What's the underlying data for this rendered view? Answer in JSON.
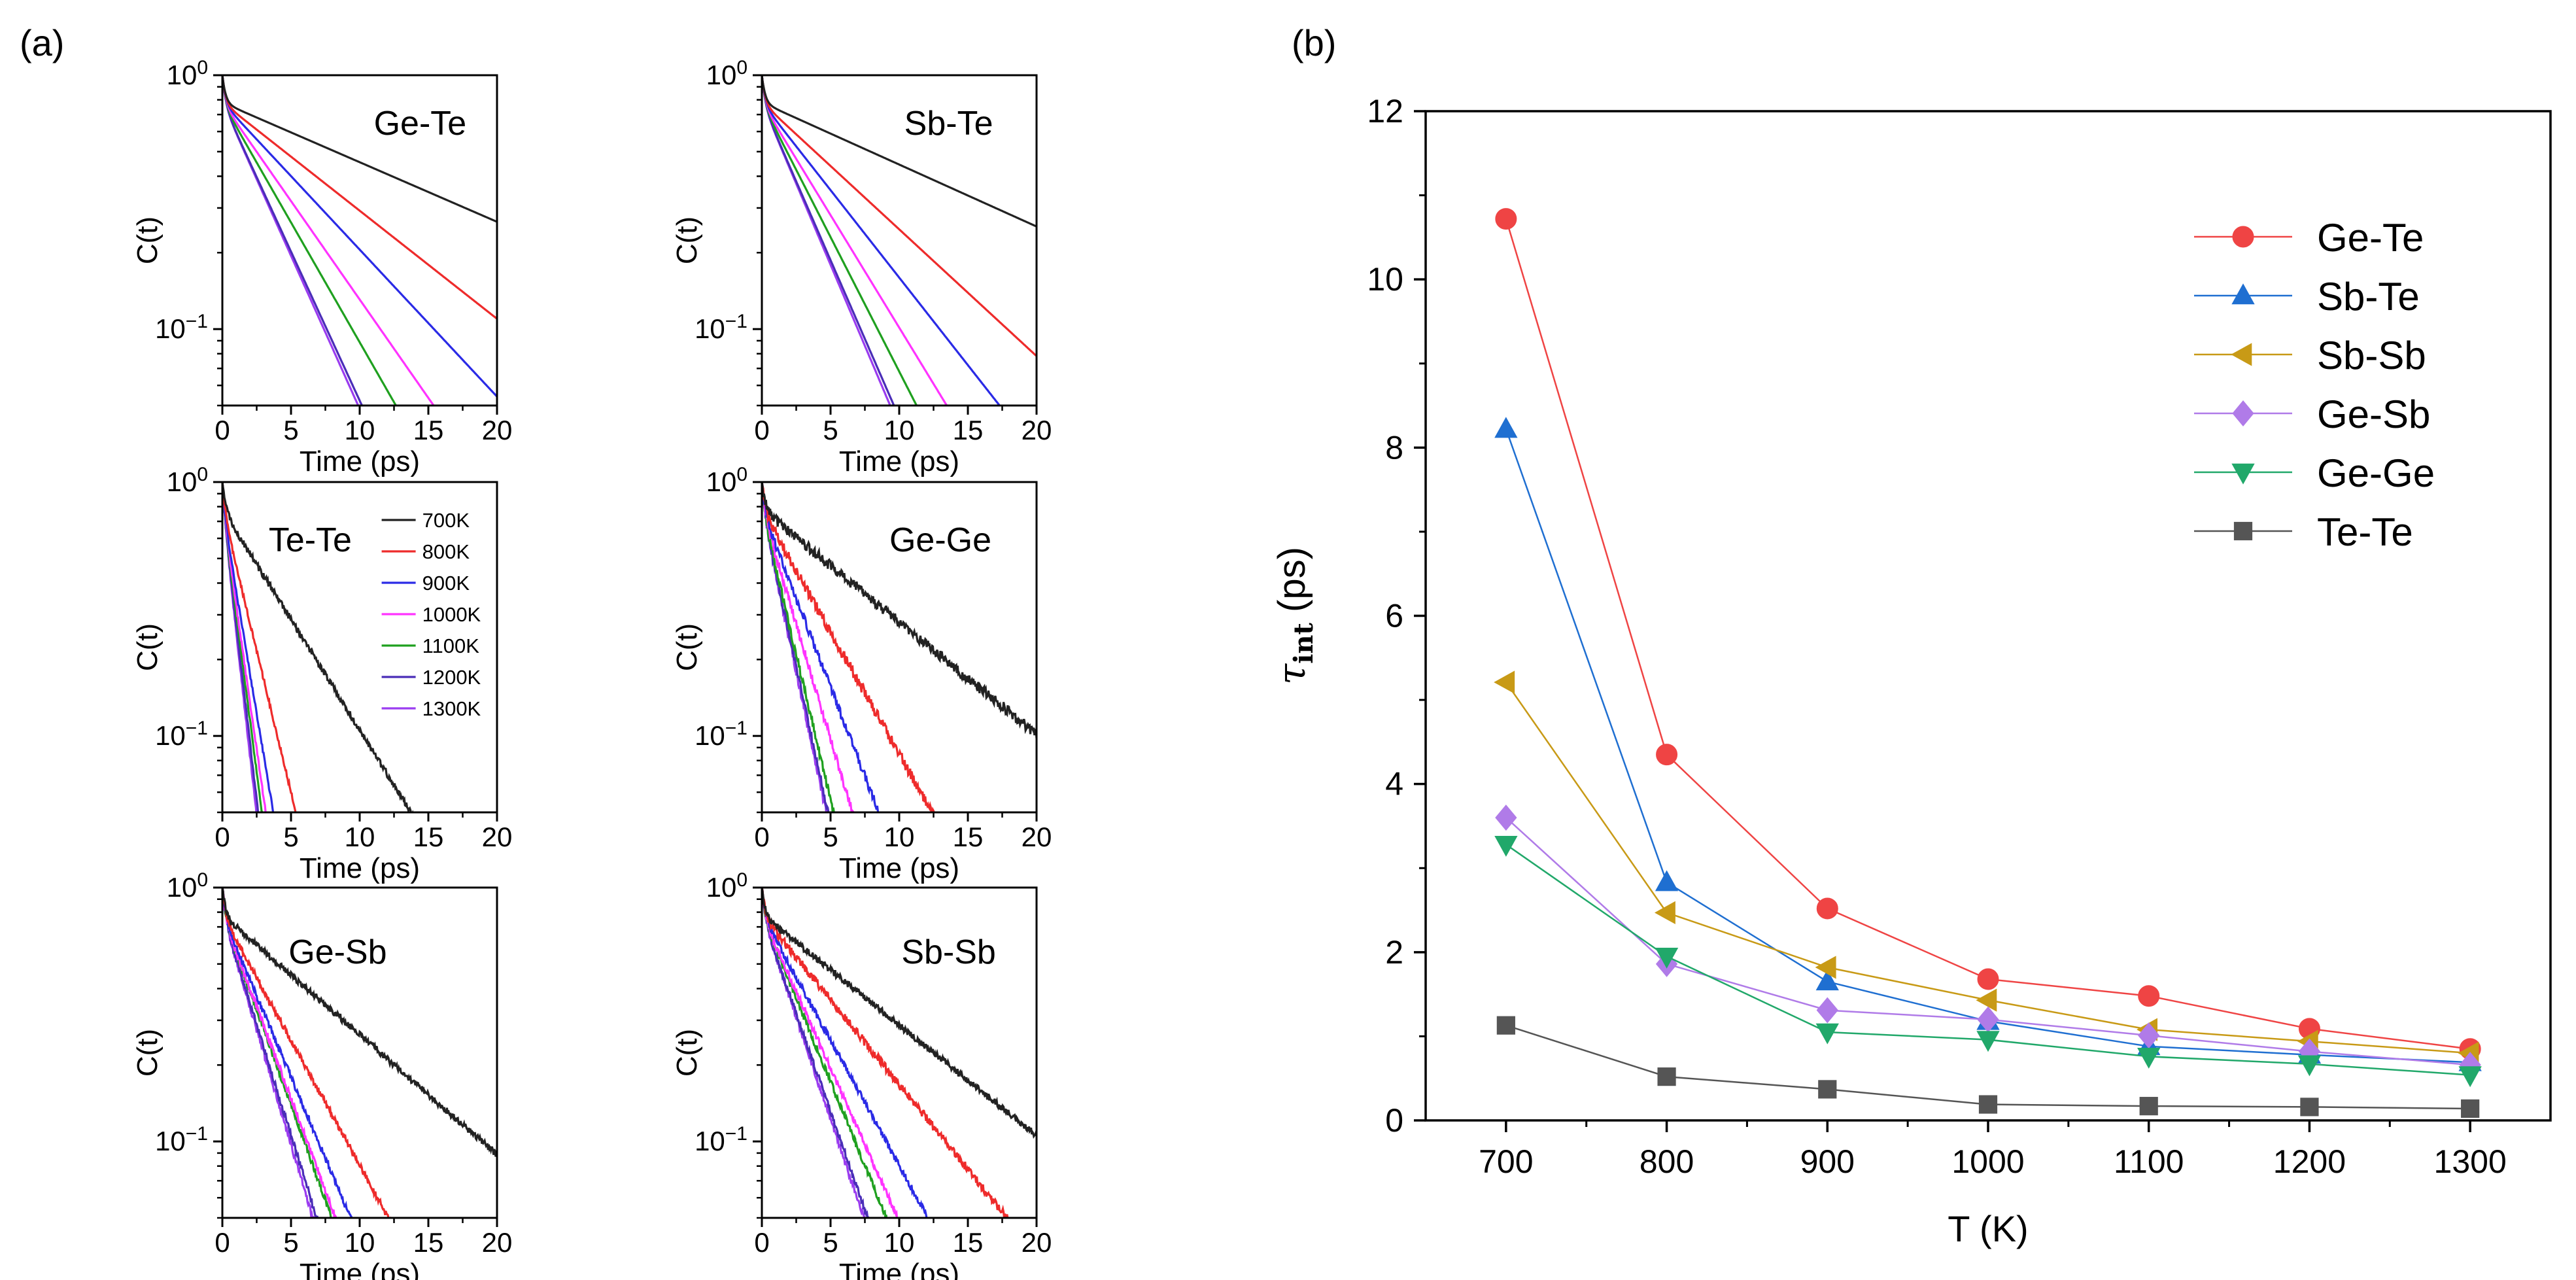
{
  "figure": {
    "panel_a_label": "(a)",
    "panel_b_label": "(b)"
  },
  "colors": {
    "700K": "#222222",
    "800K": "#ee2b2b",
    "900K": "#2a2ae6",
    "1000K": "#ff33ff",
    "1100K": "#1fa01f",
    "1200K": "#4a2db8",
    "1300K": "#9b3cf0",
    "Ge-Te": "#ef4444",
    "Sb-Te": "#1f6fd1",
    "Sb-Sb": "#c89a16",
    "Ge-Sb": "#b07be8",
    "Ge-Ge": "#21a86a",
    "Te-Te": "#555555"
  },
  "chart_data": [
    {
      "type": "line",
      "panel": "(a)",
      "title": "Ge-Te",
      "xlabel": "Time (ps)",
      "ylabel": "C(t)",
      "xlim": [
        0,
        20
      ],
      "ylim": [
        0.05,
        1
      ],
      "yscale": "log",
      "xticks": [
        "0",
        "5",
        "10",
        "15",
        "20"
      ],
      "grid": false,
      "taus": [
        18.5,
        10.2,
        7.5,
        5.6,
        4.6,
        3.7,
        3.6
      ],
      "series_names": [
        "700K",
        "800K",
        "900K",
        "1000K",
        "1100K",
        "1200K",
        "1300K"
      ],
      "noise": [
        0,
        0,
        0,
        0,
        0,
        0,
        0
      ]
    },
    {
      "type": "line",
      "panel": "(a)",
      "title": "Sb-Te",
      "xlabel": "Time (ps)",
      "ylabel": "C(t)",
      "xlim": [
        0,
        20
      ],
      "ylim": [
        0.05,
        1
      ],
      "yscale": "log",
      "xticks": [
        "0",
        "5",
        "10",
        "15",
        "20"
      ],
      "grid": false,
      "taus": [
        17.8,
        8.7,
        6.3,
        4.9,
        4.1,
        3.5,
        3.4
      ],
      "series_names": [
        "700K",
        "800K",
        "900K",
        "1000K",
        "1100K",
        "1200K",
        "1300K"
      ],
      "noise": [
        0,
        0,
        0,
        0,
        0,
        0,
        0
      ]
    },
    {
      "type": "line",
      "panel": "(a)",
      "title": "Te-Te",
      "xlabel": "Time (ps)",
      "ylabel": "C(t)",
      "xlim": [
        0,
        20
      ],
      "ylim": [
        0.05,
        1
      ],
      "yscale": "log",
      "xticks": [
        "0",
        "5",
        "10",
        "15",
        "20"
      ],
      "grid": false,
      "taus": [
        5.0,
        1.95,
        1.35,
        1.15,
        1.05,
        0.95,
        0.9
      ],
      "series_names": [
        "700K",
        "800K",
        "900K",
        "1000K",
        "1100K",
        "1200K",
        "1300K"
      ],
      "noise": [
        0.03,
        0.02,
        0.02,
        0.02,
        0.02,
        0.02,
        0.02
      ],
      "legend": {
        "entries": [
          "700K",
          "800K",
          "900K",
          "1000K",
          "1100K",
          "1200K",
          "1300K"
        ],
        "placement": "top-right"
      }
    },
    {
      "type": "line",
      "panel": "(a)",
      "title": "Ge-Ge",
      "xlabel": "Time (ps)",
      "ylabel": "C(t)",
      "xlim": [
        0,
        20
      ],
      "ylim": [
        0.05,
        1
      ],
      "yscale": "log",
      "xticks": [
        "0",
        "5",
        "10",
        "15",
        "20"
      ],
      "grid": false,
      "taus": [
        9.8,
        4.5,
        3.1,
        2.4,
        1.9,
        1.75,
        1.7
      ],
      "series_names": [
        "700K",
        "800K",
        "900K",
        "1000K",
        "1100K",
        "1200K",
        "1300K"
      ],
      "noise": [
        0.05,
        0.05,
        0.04,
        0.04,
        0.04,
        0.04,
        0.04
      ]
    },
    {
      "type": "line",
      "panel": "(a)",
      "title": "Ge-Sb",
      "xlabel": "Time (ps)",
      "ylabel": "C(t)",
      "xlim": [
        0,
        20
      ],
      "ylim": [
        0.05,
        1
      ],
      "yscale": "log",
      "xticks": [
        "0",
        "5",
        "10",
        "15",
        "20"
      ],
      "grid": false,
      "taus": [
        9.2,
        4.4,
        3.4,
        3.0,
        2.9,
        2.5,
        2.4
      ],
      "series_names": [
        "700K",
        "800K",
        "900K",
        "1000K",
        "1100K",
        "1200K",
        "1300K"
      ],
      "noise": [
        0.03,
        0.03,
        0.03,
        0.03,
        0.03,
        0.03,
        0.03
      ]
    },
    {
      "type": "line",
      "panel": "(a)",
      "title": "Sb-Sb",
      "xlabel": "Time (ps)",
      "ylabel": "C(t)",
      "xlim": [
        0,
        20
      ],
      "ylim": [
        0.05,
        1
      ],
      "yscale": "log",
      "xticks": [
        "0",
        "5",
        "10",
        "15",
        "20"
      ],
      "grid": false,
      "taus": [
        10.0,
        6.5,
        4.4,
        3.6,
        3.3,
        2.8,
        2.7
      ],
      "series_names": [
        "700K",
        "800K",
        "900K",
        "1000K",
        "1100K",
        "1200K",
        "1300K"
      ],
      "noise": [
        0.03,
        0.04,
        0.03,
        0.03,
        0.03,
        0.03,
        0.03
      ]
    },
    {
      "type": "line",
      "panel": "(b)",
      "xlabel": "T (K)",
      "ylabel_symbol": "τ",
      "ylabel_subscript": "int",
      "ylabel_unit": "(ps)",
      "xlim": [
        650,
        1350
      ],
      "ylim": [
        0,
        12
      ],
      "categories": [
        700,
        800,
        900,
        1000,
        1100,
        1200,
        1300
      ],
      "xticks": [
        "700",
        "800",
        "900",
        "1000",
        "1100",
        "1200",
        "1300"
      ],
      "yticks": [
        "0",
        "2",
        "4",
        "6",
        "8",
        "10",
        "12"
      ],
      "grid": false,
      "legend_placement": "top-right",
      "series": [
        {
          "name": "Ge-Te",
          "marker": "circle",
          "values": [
            10.72,
            4.35,
            2.52,
            1.68,
            1.48,
            1.09,
            0.85
          ]
        },
        {
          "name": "Sb-Te",
          "marker": "triangle-up",
          "values": [
            8.22,
            2.83,
            1.65,
            1.18,
            0.88,
            0.78,
            0.69
          ]
        },
        {
          "name": "Sb-Sb",
          "marker": "triangle-left",
          "values": [
            5.21,
            2.47,
            1.82,
            1.43,
            1.08,
            0.94,
            0.8
          ]
        },
        {
          "name": "Ge-Sb",
          "marker": "diamond",
          "values": [
            3.6,
            1.86,
            1.31,
            1.2,
            1.01,
            0.82,
            0.66
          ]
        },
        {
          "name": "Ge-Ge",
          "marker": "triangle-down",
          "values": [
            3.28,
            1.95,
            1.05,
            0.96,
            0.76,
            0.67,
            0.54
          ]
        },
        {
          "name": "Te-Te",
          "marker": "square",
          "values": [
            1.13,
            0.52,
            0.37,
            0.19,
            0.17,
            0.16,
            0.14
          ]
        }
      ]
    }
  ]
}
